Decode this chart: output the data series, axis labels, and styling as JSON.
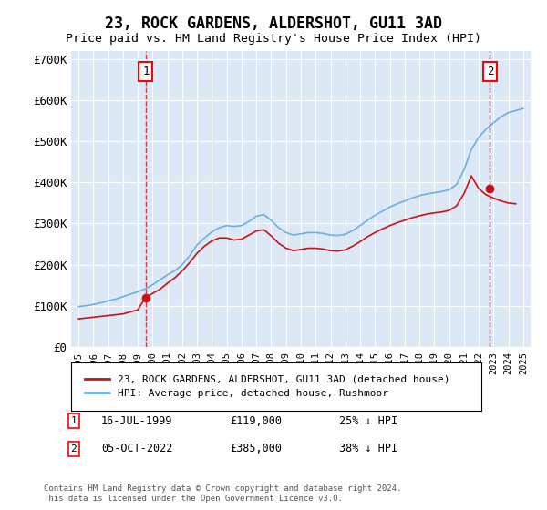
{
  "title": "23, ROCK GARDENS, ALDERSHOT, GU11 3AD",
  "subtitle": "Price paid vs. HM Land Registry's House Price Index (HPI)",
  "ylim": [
    0,
    720000
  ],
  "yticks": [
    0,
    100000,
    200000,
    300000,
    400000,
    500000,
    600000,
    700000
  ],
  "ytick_labels": [
    "£0",
    "£100K",
    "£200K",
    "£300K",
    "£400K",
    "£500K",
    "£600K",
    "£700K"
  ],
  "plot_bg_color": "#dce8f5",
  "grid_color": "#ffffff",
  "hpi_color": "#6ab0e0",
  "price_color": "#cc1111",
  "marker1_year": 1999.54,
  "marker1_price": 119000,
  "marker1_label": "1",
  "marker1_date": "16-JUL-1999",
  "marker1_amount": "£119,000",
  "marker1_pct": "25% ↓ HPI",
  "marker2_year": 2022.76,
  "marker2_price": 385000,
  "marker2_label": "2",
  "marker2_date": "05-OCT-2022",
  "marker2_amount": "£385,000",
  "marker2_pct": "38% ↓ HPI",
  "legend_line1": "23, ROCK GARDENS, ALDERSHOT, GU11 3AD (detached house)",
  "legend_line2": "HPI: Average price, detached house, Rushmoor",
  "footer": "Contains HM Land Registry data © Crown copyright and database right 2024.\nThis data is licensed under the Open Government Licence v3.0.",
  "xmin": 1994.5,
  "xmax": 2025.5
}
